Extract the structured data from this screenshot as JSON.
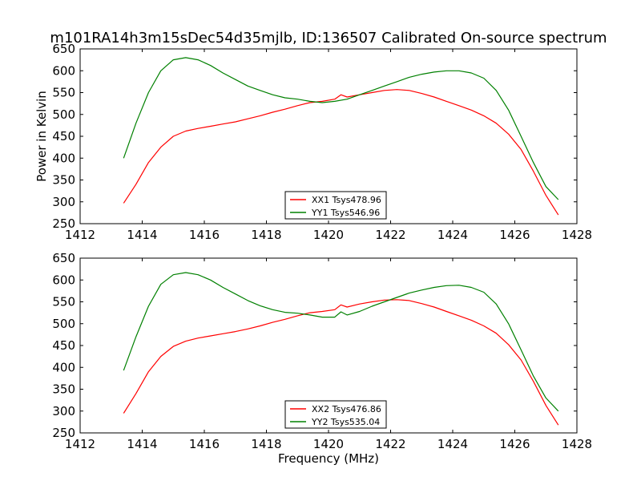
{
  "title": "m101RA14h3m15sDec54d35mjlb, ID:136507 Calibrated On-source spectrum",
  "chart_data": [
    {
      "type": "line",
      "xlabel": "",
      "ylabel": "Power in Kelvin",
      "xlim": [
        1412,
        1428
      ],
      "ylim": [
        250,
        650
      ],
      "xticks": [
        "1412",
        "1414",
        "1416",
        "1418",
        "1420",
        "1422",
        "1424",
        "1426",
        "1428"
      ],
      "yticks": [
        "250",
        "300",
        "350",
        "400",
        "450",
        "500",
        "550",
        "600",
        "650"
      ],
      "legend": {
        "placement": "lower-center"
      },
      "series": [
        {
          "name": "XX1 Tsys478.96",
          "color": "#ff0000",
          "x": [
            1413.4,
            1413.8,
            1414.2,
            1414.6,
            1415.0,
            1415.4,
            1415.8,
            1416.2,
            1416.6,
            1417.0,
            1417.4,
            1417.8,
            1418.2,
            1418.6,
            1419.0,
            1419.4,
            1419.8,
            1420.2,
            1420.4,
            1420.6,
            1421.0,
            1421.4,
            1421.8,
            1422.2,
            1422.6,
            1423.0,
            1423.4,
            1423.8,
            1424.2,
            1424.6,
            1425.0,
            1425.4,
            1425.8,
            1426.2,
            1426.6,
            1427.0,
            1427.4
          ],
          "y": [
            297,
            340,
            390,
            425,
            450,
            462,
            468,
            473,
            478,
            483,
            490,
            497,
            505,
            512,
            520,
            527,
            530,
            535,
            545,
            540,
            545,
            550,
            555,
            557,
            555,
            548,
            540,
            530,
            520,
            510,
            497,
            480,
            455,
            420,
            370,
            315,
            270
          ]
        },
        {
          "name": "YY1 Tsys546.96",
          "color": "#008000",
          "x": [
            1413.4,
            1413.8,
            1414.2,
            1414.6,
            1415.0,
            1415.4,
            1415.8,
            1416.2,
            1416.6,
            1417.0,
            1417.4,
            1417.8,
            1418.2,
            1418.6,
            1419.0,
            1419.4,
            1419.8,
            1420.2,
            1420.6,
            1421.0,
            1421.4,
            1421.8,
            1422.2,
            1422.6,
            1423.0,
            1423.4,
            1423.8,
            1424.2,
            1424.6,
            1425.0,
            1425.4,
            1425.8,
            1426.2,
            1426.6,
            1427.0,
            1427.4
          ],
          "y": [
            400,
            480,
            550,
            600,
            625,
            630,
            625,
            612,
            595,
            580,
            565,
            555,
            545,
            538,
            535,
            530,
            527,
            530,
            535,
            545,
            555,
            565,
            575,
            585,
            592,
            597,
            600,
            600,
            595,
            583,
            555,
            510,
            450,
            390,
            335,
            305
          ]
        }
      ]
    },
    {
      "type": "line",
      "xlabel": "Frequency (MHz)",
      "ylabel": "",
      "xlim": [
        1412,
        1428
      ],
      "ylim": [
        250,
        650
      ],
      "xticks": [
        "1412",
        "1414",
        "1416",
        "1418",
        "1420",
        "1422",
        "1424",
        "1426",
        "1428"
      ],
      "yticks": [
        "250",
        "300",
        "350",
        "400",
        "450",
        "500",
        "550",
        "600",
        "650"
      ],
      "legend": {
        "placement": "lower-center"
      },
      "series": [
        {
          "name": "XX2 Tsys476.86",
          "color": "#ff0000",
          "x": [
            1413.4,
            1413.8,
            1414.2,
            1414.6,
            1415.0,
            1415.4,
            1415.8,
            1416.2,
            1416.6,
            1417.0,
            1417.4,
            1417.8,
            1418.2,
            1418.6,
            1419.0,
            1419.4,
            1419.8,
            1420.2,
            1420.4,
            1420.6,
            1421.0,
            1421.4,
            1421.8,
            1422.2,
            1422.6,
            1423.0,
            1423.4,
            1423.8,
            1424.2,
            1424.6,
            1425.0,
            1425.4,
            1425.8,
            1426.2,
            1426.6,
            1427.0,
            1427.4
          ],
          "y": [
            295,
            340,
            390,
            425,
            448,
            460,
            467,
            472,
            477,
            482,
            488,
            495,
            503,
            510,
            518,
            525,
            528,
            532,
            543,
            538,
            545,
            550,
            554,
            555,
            553,
            546,
            538,
            528,
            518,
            508,
            495,
            478,
            452,
            417,
            368,
            313,
            268
          ]
        },
        {
          "name": "YY2 Tsys535.04",
          "color": "#008000",
          "x": [
            1413.4,
            1413.8,
            1414.2,
            1414.6,
            1415.0,
            1415.4,
            1415.8,
            1416.2,
            1416.6,
            1417.0,
            1417.4,
            1417.8,
            1418.2,
            1418.6,
            1419.0,
            1419.4,
            1419.8,
            1420.2,
            1420.4,
            1420.6,
            1421.0,
            1421.4,
            1421.8,
            1422.2,
            1422.6,
            1423.0,
            1423.4,
            1423.8,
            1424.2,
            1424.6,
            1425.0,
            1425.4,
            1425.8,
            1426.2,
            1426.6,
            1427.0,
            1427.4
          ],
          "y": [
            393,
            470,
            540,
            590,
            612,
            617,
            612,
            600,
            583,
            568,
            553,
            541,
            532,
            526,
            524,
            520,
            515,
            515,
            527,
            520,
            528,
            540,
            550,
            560,
            570,
            577,
            583,
            587,
            588,
            583,
            572,
            545,
            500,
            440,
            380,
            330,
            300
          ]
        }
      ]
    }
  ]
}
